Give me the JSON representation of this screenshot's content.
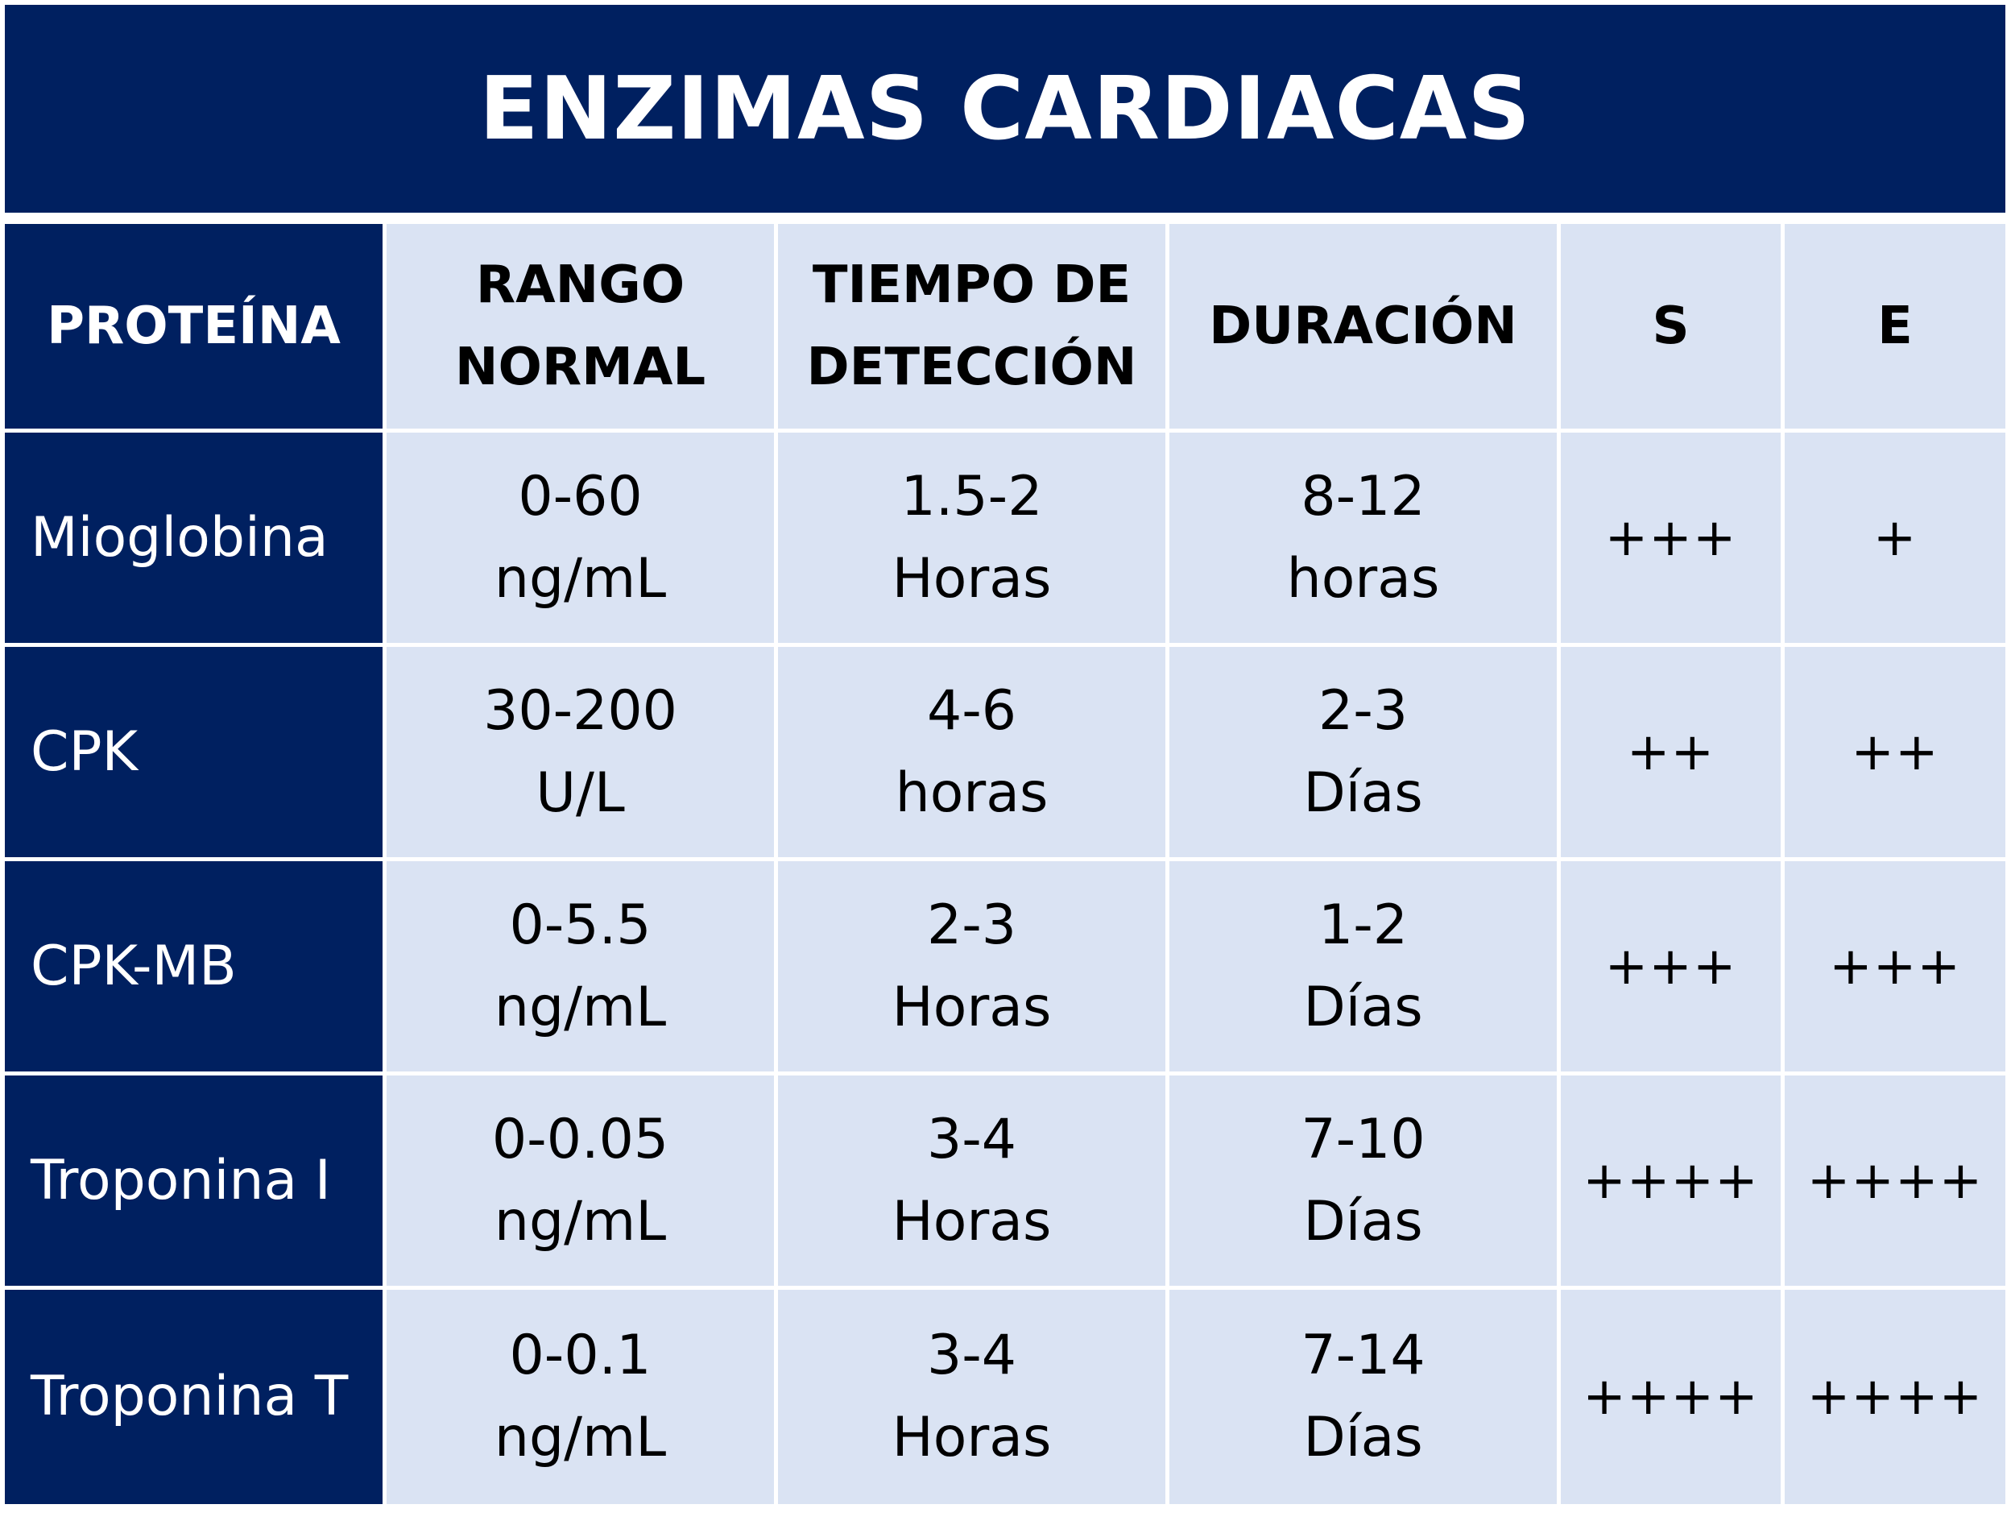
{
  "title": "ENZIMAS CARDIACAS",
  "colors": {
    "header_dark": "#002060",
    "cell_light": "#dae3f3",
    "text_light": "#ffffff",
    "text_dark": "#000000"
  },
  "headers": {
    "protein": "PROTEÍNA",
    "range_l1": "RANGO",
    "range_l2": "NORMAL",
    "detect_l1": "TIEMPO DE",
    "detect_l2": "DETECCIÓN",
    "duration": "DURACIÓN",
    "s": "S",
    "e": "E"
  },
  "rows": [
    {
      "protein": "Mioglobina",
      "range_l1": "0-60",
      "range_l2": "ng/mL",
      "detect_l1": "1.5-2",
      "detect_l2": "Horas",
      "duration_l1": "8-12",
      "duration_l2": "horas",
      "s": "+++",
      "e": "+"
    },
    {
      "protein": "CPK",
      "range_l1": "30-200",
      "range_l2": "U/L",
      "detect_l1": "4-6",
      "detect_l2": "horas",
      "duration_l1": "2-3",
      "duration_l2": "Días",
      "s": "++",
      "e": "++"
    },
    {
      "protein": "CPK-MB",
      "range_l1": "0-5.5",
      "range_l2": "ng/mL",
      "detect_l1": "2-3",
      "detect_l2": "Horas",
      "duration_l1": "1-2",
      "duration_l2": "Días",
      "s": "+++",
      "e": "+++"
    },
    {
      "protein": "Troponina I",
      "range_l1": "0-0.05",
      "range_l2": "ng/mL",
      "detect_l1": "3-4",
      "detect_l2": "Horas",
      "duration_l1": "7-10",
      "duration_l2": "Días",
      "s": "++++",
      "e": "++++"
    },
    {
      "protein": "Troponina T",
      "range_l1": "0-0.1",
      "range_l2": "ng/mL",
      "detect_l1": "3-4",
      "detect_l2": "Horas",
      "duration_l1": "7-14",
      "duration_l2": "Días",
      "s": "++++",
      "e": "++++"
    }
  ]
}
